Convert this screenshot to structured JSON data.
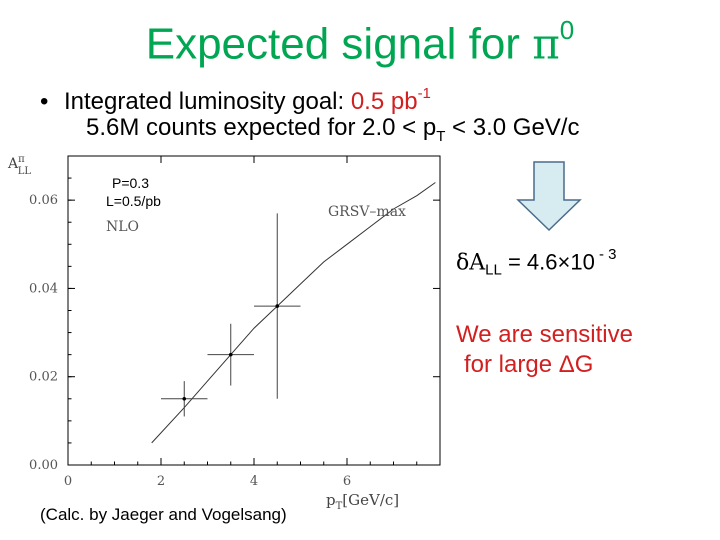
{
  "slide": {
    "title": "Expected signal for ",
    "title_symbol": "π",
    "title_sup": "0",
    "bullet_text": "Integrated luminosity goal: ",
    "bullet_value": "0.5 pb",
    "bullet_value_sup": "-1",
    "line2_a": "5.6M counts expected for 2.0 < p",
    "line2_sub": "T",
    "line2_b": " < 3.0 GeV/c",
    "dall_prefix": "δA",
    "dall_sub": "LL",
    "dall_eq": " = 4.6×10",
    "dall_sup": " - 3",
    "sensitive_line1": "We are sensitive",
    "sensitive_line2": "for large ΔG",
    "calc_note": "(Calc. by Jaeger and Vogelsang)",
    "arrow_color": "#d7ecf0",
    "accent_title": "#00a651",
    "accent_red": "#d21f1f"
  },
  "chart_data": {
    "type": "scatter",
    "ylabel": "A^π_LL",
    "xlabel": "p_T[GeV/c]",
    "xlim": [
      0,
      8
    ],
    "ylim": [
      0,
      0.07
    ],
    "x_ticks": [
      "0",
      "2",
      "4",
      "6"
    ],
    "y_ticks": [
      "0.00",
      "0.02",
      "0.04",
      "0.06"
    ],
    "annotations": [
      "P=0.3",
      "L=0.5/pb",
      "NLO",
      "GRSV–max"
    ],
    "series": [
      {
        "name": "GRSV–max",
        "kind": "curve",
        "x": [
          1.8,
          2.5,
          3.0,
          3.5,
          4.0,
          4.5,
          5.0,
          5.5,
          6.0,
          6.5,
          7.0,
          7.5,
          7.9
        ],
        "y": [
          0.005,
          0.013,
          0.019,
          0.025,
          0.031,
          0.036,
          0.041,
          0.046,
          0.05,
          0.054,
          0.058,
          0.061,
          0.064
        ]
      },
      {
        "kind": "points",
        "x": [
          2.5,
          3.5,
          4.5
        ],
        "y": [
          0.015,
          0.025,
          0.036
        ],
        "xerr": [
          0.5,
          0.5,
          0.5
        ],
        "yerr": [
          0.004,
          0.007,
          0.021
        ]
      }
    ]
  }
}
